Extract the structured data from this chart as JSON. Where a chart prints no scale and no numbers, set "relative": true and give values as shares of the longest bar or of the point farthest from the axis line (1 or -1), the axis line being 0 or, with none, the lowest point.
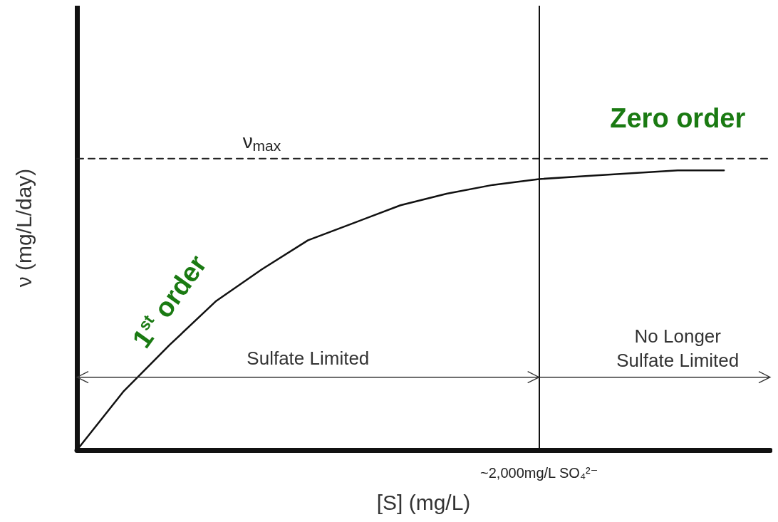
{
  "chart_data": {
    "type": "line",
    "relative": true,
    "xlabel": "[S] (mg/L)",
    "ylabel": "ν (mg/L/day)",
    "grid": false,
    "legend": false,
    "marker": "none",
    "line_style": "solid",
    "categories": [
      null,
      null,
      null,
      null,
      null,
      null,
      null,
      null,
      null,
      null,
      null,
      null,
      null,
      null,
      null,
      null
    ],
    "series": [
      {
        "color": "#111111",
        "values": [
          0,
          0.2,
          0.36,
          0.51,
          0.62,
          0.72,
          0.78,
          0.84,
          0.88,
          0.91,
          0.93,
          0.94,
          0.95,
          0.96,
          0.96,
          null
        ]
      },
      {
        "name": "ν$_{max}$",
        "color": "#222222",
        "line_style": "dashed",
        "values": [
          1,
          1,
          1,
          1,
          1,
          1,
          1,
          1,
          1,
          1,
          1,
          1,
          1,
          1,
          1,
          1
        ]
      }
    ],
    "ref_lines": [
      {
        "axis": "x",
        "label": "~2,000mg/L SO₄²⁻",
        "line_style": "solid"
      }
    ],
    "annotations": [
      "Zero order",
      "1$^{st}$ order",
      "Sulfate Limited",
      "No Longer\nSulfate Limited"
    ]
  }
}
